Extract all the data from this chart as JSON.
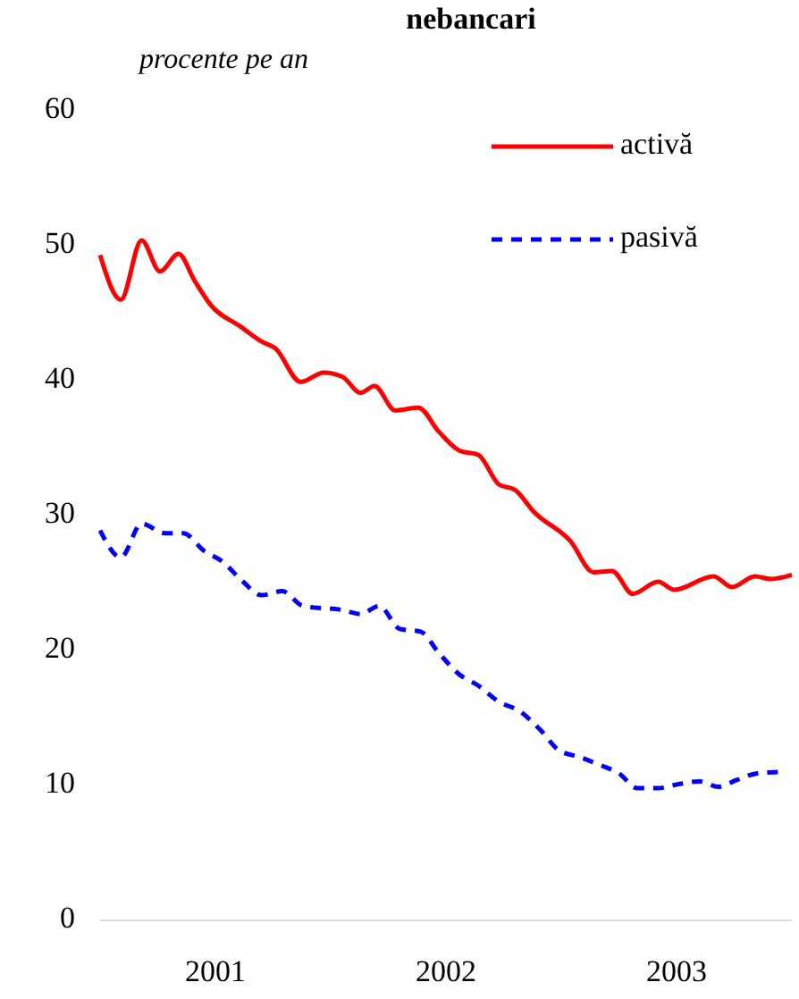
{
  "chart_data": {
    "type": "line",
    "title": "nebancari",
    "ylabel": "procente pe an",
    "xlim": [
      2001,
      2004
    ],
    "xticks": [
      {
        "value": 2001.5,
        "label": "2001"
      },
      {
        "value": 2002.5,
        "label": "2002"
      },
      {
        "value": 2003.5,
        "label": "2003"
      }
    ],
    "ylim": [
      0,
      60
    ],
    "yticks": [
      0,
      10,
      20,
      30,
      40,
      50,
      60
    ],
    "grid": false,
    "legend": "top right",
    "series": [
      {
        "name": "activă",
        "color": "#ff0000",
        "line_style": "solid",
        "x": [
          2001.0,
          2001.09,
          2001.18,
          2001.26,
          2001.34,
          2001.41,
          2001.48,
          2001.61,
          2001.7,
          2001.76,
          2001.87,
          2001.97,
          2002.05,
          2002.13,
          2002.19,
          2002.28,
          2002.38,
          2002.47,
          2002.56,
          2002.64,
          2002.73,
          2002.8,
          2002.88,
          2003.04,
          2003.14,
          2003.22,
          2003.31,
          2003.42,
          2003.49,
          2003.66,
          2003.74,
          2003.84,
          2003.91,
          2004.0
        ],
        "values": [
          49.3,
          46.0,
          50.4,
          48.1,
          49.4,
          47.4,
          45.6,
          44.0,
          42.9,
          42.4,
          39.9,
          40.6,
          40.3,
          39.1,
          39.6,
          37.8,
          38.0,
          36.2,
          34.8,
          34.5,
          32.3,
          31.9,
          30.3,
          28.1,
          25.8,
          25.9,
          24.2,
          25.1,
          24.5,
          25.5,
          24.7,
          25.5,
          25.3,
          25.6
        ]
      },
      {
        "name": "pasivă",
        "color": "#0000ff",
        "line_style": "dashed",
        "x": [
          2001.0,
          2001.09,
          2001.18,
          2001.28,
          2001.36,
          2001.45,
          2001.53,
          2001.62,
          2001.7,
          2001.79,
          2001.88,
          2002.05,
          2002.13,
          2002.21,
          2002.3,
          2002.39,
          2002.47,
          2002.56,
          2002.64,
          2002.73,
          2002.82,
          2002.91,
          2002.99,
          2003.08,
          2003.17,
          2003.25,
          2003.33,
          2003.42,
          2003.51,
          2003.6,
          2003.68,
          2003.76,
          2003.85,
          2003.94
        ],
        "values": [
          28.9,
          26.9,
          29.4,
          28.7,
          28.7,
          27.4,
          26.6,
          25.1,
          24.1,
          24.4,
          23.3,
          23.0,
          22.7,
          23.3,
          21.6,
          21.4,
          19.8,
          18.2,
          17.4,
          16.2,
          15.5,
          14.1,
          12.6,
          12.1,
          11.5,
          10.9,
          9.8,
          9.8,
          10.1,
          10.3,
          9.9,
          10.4,
          10.9,
          11.0
        ]
      }
    ]
  }
}
